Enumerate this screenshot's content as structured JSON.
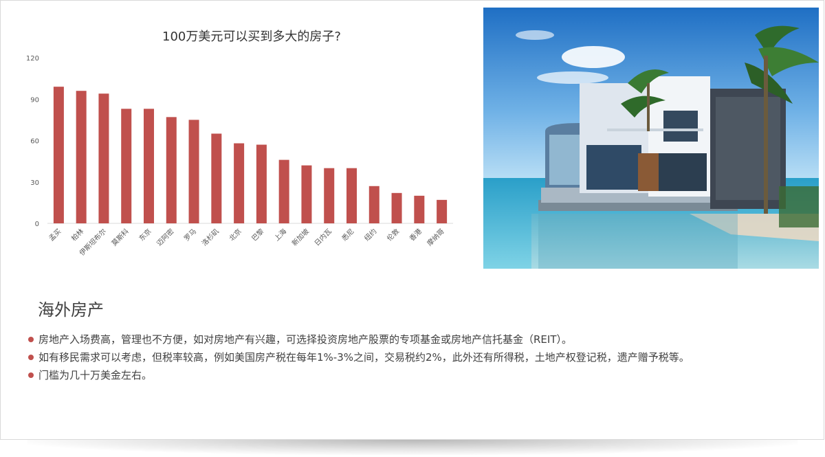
{
  "slide": {
    "section_title": "海外房产",
    "bullets": [
      "房地产入场费高，管理也不方便，如对房地产有兴趣，可选择投资房地产股票的专项基金或房地产信托基金（REIT）。",
      "如有移民需求可以考虑，但税率较高，例如美国房产税在每年1%-3%之间，交易税约2%，此外还有所得税，土地产权登记税，遗产赠予税等。",
      "门槛为几十万美金左右。"
    ],
    "bullet_color": "#c0504d",
    "image": {
      "description": "modern glass villa on water with palm trees"
    }
  },
  "chart_data": {
    "type": "bar",
    "title": "100万美元可以买到多大的房子?",
    "xlabel": "",
    "ylabel": "",
    "categories": [
      "孟买",
      "柏林",
      "伊斯坦布尔",
      "莫斯科",
      "东京",
      "迈阿密",
      "罗马",
      "洛杉矶",
      "北京",
      "巴黎",
      "上海",
      "新加坡",
      "日内瓦",
      "悉尼",
      "纽约",
      "伦敦",
      "香港",
      "摩纳哥"
    ],
    "values": [
      99,
      96,
      94,
      83,
      83,
      77,
      75,
      65,
      58,
      57,
      46,
      42,
      40,
      40,
      27,
      22,
      20,
      17
    ],
    "ylim": [
      0,
      120
    ],
    "yticks": [
      0,
      30,
      60,
      90,
      120
    ],
    "bar_color": "#c0504d",
    "grid": false,
    "legend": "none"
  }
}
